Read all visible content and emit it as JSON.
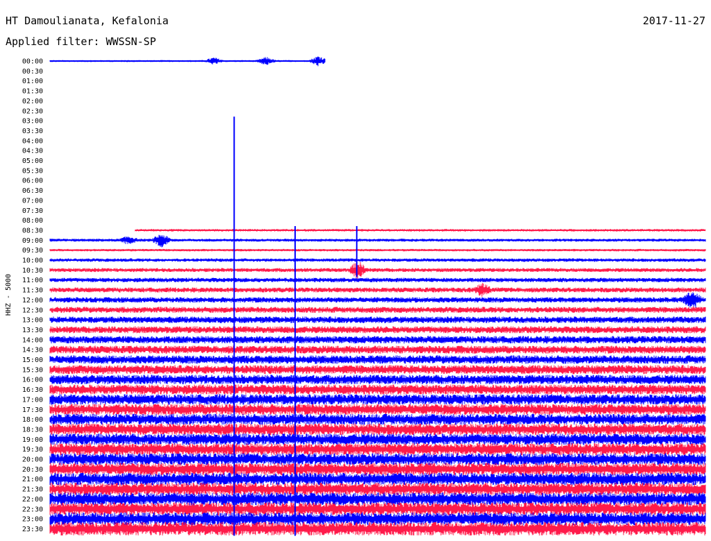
{
  "header": {
    "station": "HT Damoulianata, Kefalonia",
    "date": "2017-11-27",
    "filter": "Applied filter: WWSSN-SP"
  },
  "chart_data": {
    "type": "line",
    "title": "HT Damoulianata, Kefalonia",
    "ylabel": "HHZ - 5000",
    "series_colors": [
      "#0000ff",
      "#ff1a4a"
    ],
    "time_labels": [
      "00:00",
      "00:30",
      "01:00",
      "01:30",
      "02:00",
      "02:30",
      "03:00",
      "03:30",
      "04:00",
      "04:30",
      "05:00",
      "05:30",
      "06:00",
      "06:30",
      "07:00",
      "07:30",
      "08:00",
      "08:30",
      "09:00",
      "09:30",
      "10:00",
      "10:30",
      "11:00",
      "11:30",
      "12:00",
      "12:30",
      "13:00",
      "13:30",
      "14:00",
      "14:30",
      "15:00",
      "15:30",
      "16:00",
      "16:30",
      "17:00",
      "17:30",
      "18:00",
      "18:30",
      "19:00",
      "19:30",
      "20:00",
      "20:30",
      "21:00",
      "21:30",
      "22:00",
      "22:30",
      "23:00",
      "23:30"
    ],
    "rows": [
      {
        "label": "00:00",
        "start": 0.0,
        "end": 0.42,
        "amp": 0.2
      },
      {
        "label": "00:30",
        "start": 0,
        "end": 0,
        "amp": 0
      },
      {
        "label": "01:00",
        "start": 0,
        "end": 0,
        "amp": 0
      },
      {
        "label": "01:30",
        "start": 0,
        "end": 0,
        "amp": 0
      },
      {
        "label": "02:00",
        "start": 0,
        "end": 0,
        "amp": 0
      },
      {
        "label": "02:30",
        "start": 0,
        "end": 0,
        "amp": 0
      },
      {
        "label": "03:00",
        "start": 0,
        "end": 0,
        "amp": 0
      },
      {
        "label": "03:30",
        "start": 0,
        "end": 0,
        "amp": 0
      },
      {
        "label": "04:00",
        "start": 0,
        "end": 0,
        "amp": 0
      },
      {
        "label": "04:30",
        "start": 0,
        "end": 0,
        "amp": 0
      },
      {
        "label": "05:00",
        "start": 0,
        "end": 0,
        "amp": 0
      },
      {
        "label": "05:30",
        "start": 0,
        "end": 0,
        "amp": 0
      },
      {
        "label": "06:00",
        "start": 0,
        "end": 0,
        "amp": 0
      },
      {
        "label": "06:30",
        "start": 0,
        "end": 0,
        "amp": 0
      },
      {
        "label": "07:00",
        "start": 0,
        "end": 0,
        "amp": 0
      },
      {
        "label": "07:30",
        "start": 0,
        "end": 0,
        "amp": 0
      },
      {
        "label": "08:00",
        "start": 0,
        "end": 0,
        "amp": 0
      },
      {
        "label": "08:30",
        "start": 0.13,
        "end": 1.0,
        "amp": 0.25
      },
      {
        "label": "09:00",
        "start": 0.0,
        "end": 1.0,
        "amp": 0.3
      },
      {
        "label": "09:30",
        "start": 0.0,
        "end": 1.0,
        "amp": 0.25
      },
      {
        "label": "10:00",
        "start": 0.0,
        "end": 1.0,
        "amp": 0.35
      },
      {
        "label": "10:30",
        "start": 0.0,
        "end": 1.0,
        "amp": 0.4
      },
      {
        "label": "11:00",
        "start": 0.0,
        "end": 1.0,
        "amp": 0.45
      },
      {
        "label": "11:30",
        "start": 0.0,
        "end": 1.0,
        "amp": 0.5
      },
      {
        "label": "12:00",
        "start": 0.0,
        "end": 1.0,
        "amp": 0.55
      },
      {
        "label": "12:30",
        "start": 0.0,
        "end": 1.0,
        "amp": 0.6
      },
      {
        "label": "13:00",
        "start": 0.0,
        "end": 1.0,
        "amp": 0.65
      },
      {
        "label": "13:30",
        "start": 0.0,
        "end": 1.0,
        "amp": 0.7
      },
      {
        "label": "14:00",
        "start": 0.0,
        "end": 1.0,
        "amp": 0.75
      },
      {
        "label": "14:30",
        "start": 0.0,
        "end": 1.0,
        "amp": 0.8
      },
      {
        "label": "15:00",
        "start": 0.0,
        "end": 1.0,
        "amp": 0.85
      },
      {
        "label": "15:30",
        "start": 0.0,
        "end": 1.0,
        "amp": 0.9
      },
      {
        "label": "16:00",
        "start": 0.0,
        "end": 1.0,
        "amp": 0.95
      },
      {
        "label": "16:30",
        "start": 0.0,
        "end": 1.0,
        "amp": 1.0
      },
      {
        "label": "17:00",
        "start": 0.0,
        "end": 1.0,
        "amp": 1.05
      },
      {
        "label": "17:30",
        "start": 0.0,
        "end": 1.0,
        "amp": 1.1
      },
      {
        "label": "18:00",
        "start": 0.0,
        "end": 1.0,
        "amp": 1.1
      },
      {
        "label": "18:30",
        "start": 0.0,
        "end": 1.0,
        "amp": 1.15
      },
      {
        "label": "19:00",
        "start": 0.0,
        "end": 1.0,
        "amp": 1.15
      },
      {
        "label": "19:30",
        "start": 0.0,
        "end": 1.0,
        "amp": 1.2
      },
      {
        "label": "20:00",
        "start": 0.0,
        "end": 1.0,
        "amp": 1.2
      },
      {
        "label": "20:30",
        "start": 0.0,
        "end": 1.0,
        "amp": 1.25
      },
      {
        "label": "21:00",
        "start": 0.0,
        "end": 1.0,
        "amp": 1.25
      },
      {
        "label": "21:30",
        "start": 0.0,
        "end": 1.0,
        "amp": 1.25
      },
      {
        "label": "22:00",
        "start": 0.0,
        "end": 1.0,
        "amp": 1.3
      },
      {
        "label": "22:30",
        "start": 0.0,
        "end": 1.0,
        "amp": 1.3
      },
      {
        "label": "23:00",
        "start": 0.0,
        "end": 1.0,
        "amp": 1.3
      },
      {
        "label": "23:30",
        "start": 0.0,
        "end": 1.0,
        "amp": 1.35
      }
    ],
    "events": [
      {
        "row": "00:00",
        "at": 0.25,
        "amp": 0.6
      },
      {
        "row": "00:00",
        "at": 0.33,
        "amp": 0.7
      },
      {
        "row": "00:00",
        "at": 0.41,
        "amp": 1.0
      },
      {
        "row": "09:00",
        "at": 0.12,
        "amp": 0.7
      },
      {
        "row": "09:00",
        "at": 0.17,
        "amp": 1.2
      },
      {
        "row": "10:30",
        "at": 0.47,
        "amp": 1.6
      },
      {
        "row": "11:30",
        "at": 0.66,
        "amp": 1.0
      },
      {
        "row": "12:00",
        "at": 0.98,
        "amp": 1.6
      }
    ],
    "spikes": [
      {
        "at": 0.281,
        "from": "03:00",
        "to": "23:30"
      },
      {
        "at": 0.374,
        "from": "08:30",
        "to": "23:30"
      },
      {
        "at": 0.468,
        "from": "08:30",
        "to": "10:30"
      }
    ]
  }
}
